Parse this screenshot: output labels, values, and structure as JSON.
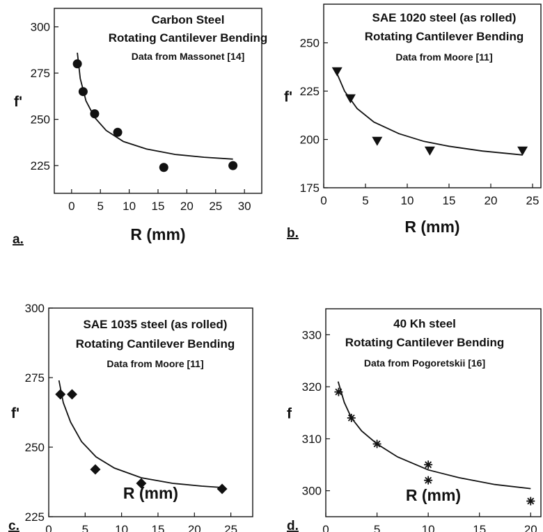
{
  "chart_data": [
    {
      "type": "scatter",
      "panel_label": "a.",
      "title_lines": [
        "Carbon Steel",
        "Rotating Cantilever Bending",
        "Data from Massonet [14]"
      ],
      "ylabel": "f'",
      "xlabel": "R  (mm)",
      "xlim": [
        -3,
        33
      ],
      "ylim": [
        210,
        310
      ],
      "xticks": [
        0,
        5,
        10,
        15,
        20,
        25,
        30
      ],
      "yticks": [
        225,
        250,
        275,
        300
      ],
      "marker": "circle",
      "points": [
        {
          "x": 1,
          "y": 280
        },
        {
          "x": 2,
          "y": 265
        },
        {
          "x": 4,
          "y": 253
        },
        {
          "x": 8,
          "y": 243
        },
        {
          "x": 16,
          "y": 224
        },
        {
          "x": 28,
          "y": 225
        }
      ],
      "fit_curve": [
        [
          1.0,
          286
        ],
        [
          1.5,
          272
        ],
        [
          2.5,
          260
        ],
        [
          4,
          251
        ],
        [
          6,
          244
        ],
        [
          9,
          238
        ],
        [
          13,
          234
        ],
        [
          18,
          231
        ],
        [
          23,
          229.5
        ],
        [
          28,
          228.5
        ]
      ]
    },
    {
      "type": "scatter",
      "panel_label": "b.",
      "title_lines": [
        "SAE 1020 steel (as rolled)",
        "Rotating Cantilever Bending",
        "Data from Moore [11]"
      ],
      "ylabel": "f'",
      "xlabel": "R  (mm)",
      "xlim": [
        0,
        26
      ],
      "ylim": [
        175,
        270
      ],
      "xticks": [
        0,
        5,
        10,
        15,
        20,
        25
      ],
      "yticks": [
        175,
        200,
        225,
        250
      ],
      "marker": "triangle-down",
      "points": [
        {
          "x": 1.6,
          "y": 235
        },
        {
          "x": 3.2,
          "y": 221
        },
        {
          "x": 6.4,
          "y": 199
        },
        {
          "x": 12.7,
          "y": 194
        },
        {
          "x": 23.8,
          "y": 194
        }
      ],
      "fit_curve": [
        [
          1.6,
          234
        ],
        [
          2.5,
          225
        ],
        [
          4,
          216
        ],
        [
          6,
          209
        ],
        [
          9,
          203
        ],
        [
          12,
          199
        ],
        [
          15,
          196.5
        ],
        [
          19,
          194
        ],
        [
          23.8,
          192
        ]
      ]
    },
    {
      "type": "scatter",
      "panel_label": "c.",
      "title_lines": [
        "SAE 1035 steel (as rolled)",
        "Rotating Cantilever Bending",
        "Data from Moore [11]"
      ],
      "ylabel": "f'",
      "xlabel": "R  (mm)",
      "xlim": [
        0,
        28
      ],
      "ylim": [
        225,
        300
      ],
      "xticks": [
        0,
        5,
        10,
        15,
        20,
        25
      ],
      "yticks": [
        225,
        250,
        275,
        300
      ],
      "marker": "diamond",
      "points": [
        {
          "x": 1.6,
          "y": 269
        },
        {
          "x": 3.2,
          "y": 269
        },
        {
          "x": 6.4,
          "y": 242
        },
        {
          "x": 12.7,
          "y": 237
        },
        {
          "x": 23.8,
          "y": 235
        }
      ],
      "fit_curve": [
        [
          1.4,
          274
        ],
        [
          2,
          266
        ],
        [
          3,
          259
        ],
        [
          4.5,
          252
        ],
        [
          6.5,
          246.5
        ],
        [
          9,
          242.5
        ],
        [
          12.7,
          239
        ],
        [
          17,
          237
        ],
        [
          21,
          236
        ],
        [
          23.8,
          235.5
        ]
      ]
    },
    {
      "type": "scatter",
      "panel_label": "d.",
      "title_lines": [
        "40 Kh steel",
        "Rotating Cantilever Bending",
        "Data from Pogoretskii [16]"
      ],
      "ylabel": "f",
      "xlabel": "R  (mm)",
      "xlim": [
        0,
        21
      ],
      "ylim": [
        295,
        335
      ],
      "xticks": [
        0,
        5,
        10,
        15,
        20
      ],
      "yticks": [
        300,
        310,
        320,
        330
      ],
      "marker": "asterisk",
      "points": [
        {
          "x": 1.25,
          "y": 319
        },
        {
          "x": 2.5,
          "y": 314
        },
        {
          "x": 5,
          "y": 309
        },
        {
          "x": 10,
          "y": 305
        },
        {
          "x": 10,
          "y": 302
        },
        {
          "x": 20,
          "y": 298
        }
      ],
      "fit_curve": [
        [
          1.2,
          321
        ],
        [
          1.8,
          317
        ],
        [
          2.5,
          314
        ],
        [
          3.5,
          311.5
        ],
        [
          5,
          309
        ],
        [
          7,
          306.5
        ],
        [
          10,
          304
        ],
        [
          13,
          302.5
        ],
        [
          16.5,
          301.2
        ],
        [
          20,
          300.4
        ]
      ]
    }
  ]
}
